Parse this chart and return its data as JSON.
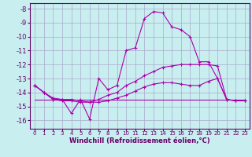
{
  "background_color": "#c8eef0",
  "grid_color": "#aaaacc",
  "line_color": "#aa00aa",
  "xlabel": "Windchill (Refroidissement éolien,°C)",
  "xlim": [
    -0.5,
    23.5
  ],
  "ylim": [
    -16.6,
    -7.6
  ],
  "yticks": [
    -16,
    -15,
    -14,
    -13,
    -12,
    -11,
    -10,
    -9,
    -8
  ],
  "xticks": [
    0,
    1,
    2,
    3,
    4,
    5,
    6,
    7,
    8,
    9,
    10,
    11,
    12,
    13,
    14,
    15,
    16,
    17,
    18,
    19,
    20,
    21,
    22,
    23
  ],
  "series": [
    {
      "x": [
        0,
        1,
        2,
        3,
        4,
        5,
        6,
        7,
        8,
        9,
        10,
        11,
        12,
        13,
        14,
        15,
        16,
        17,
        18,
        19,
        20,
        21,
        22,
        23
      ],
      "y": [
        -13.5,
        -14.0,
        -14.4,
        -14.5,
        -15.5,
        -14.5,
        -15.9,
        -13.0,
        -13.8,
        -13.5,
        -11.0,
        -10.8,
        -8.7,
        -8.2,
        -8.3,
        -9.3,
        -9.5,
        -10.0,
        -11.8,
        -11.8,
        -13.0,
        -14.5,
        -14.6,
        -14.6
      ],
      "marker": true
    },
    {
      "x": [
        0,
        1,
        2,
        3,
        4,
        5,
        6,
        7,
        8,
        9,
        10,
        11,
        12,
        13,
        14,
        15,
        16,
        17,
        18,
        19,
        20,
        21,
        22,
        23
      ],
      "y": [
        -13.5,
        -14.0,
        -14.5,
        -14.5,
        -14.5,
        -14.6,
        -14.7,
        -14.5,
        -14.2,
        -14.0,
        -13.5,
        -13.2,
        -12.8,
        -12.5,
        -12.2,
        -12.1,
        -12.0,
        -12.0,
        -12.0,
        -12.0,
        -12.1,
        -14.5,
        -14.6,
        -14.6
      ],
      "marker": true
    },
    {
      "x": [
        0,
        1,
        2,
        3,
        4,
        5,
        6,
        7,
        8,
        9,
        10,
        11,
        12,
        13,
        14,
        15,
        16,
        17,
        18,
        19,
        20,
        21,
        22,
        23
      ],
      "y": [
        -13.5,
        -14.0,
        -14.5,
        -14.6,
        -14.6,
        -14.7,
        -14.7,
        -14.7,
        -14.6,
        -14.4,
        -14.2,
        -13.9,
        -13.6,
        -13.4,
        -13.3,
        -13.3,
        -13.4,
        -13.5,
        -13.5,
        -13.2,
        -13.0,
        -14.5,
        -14.6,
        -14.6
      ],
      "marker": true
    },
    {
      "x": [
        0,
        23
      ],
      "y": [
        -14.5,
        -14.5
      ],
      "marker": false
    }
  ],
  "tick_color": "#660066",
  "spine_color": "#660066",
  "xlabel_fontsize": 6,
  "xlabel_bold": true,
  "ytick_fontsize": 6,
  "xtick_fontsize": 5
}
